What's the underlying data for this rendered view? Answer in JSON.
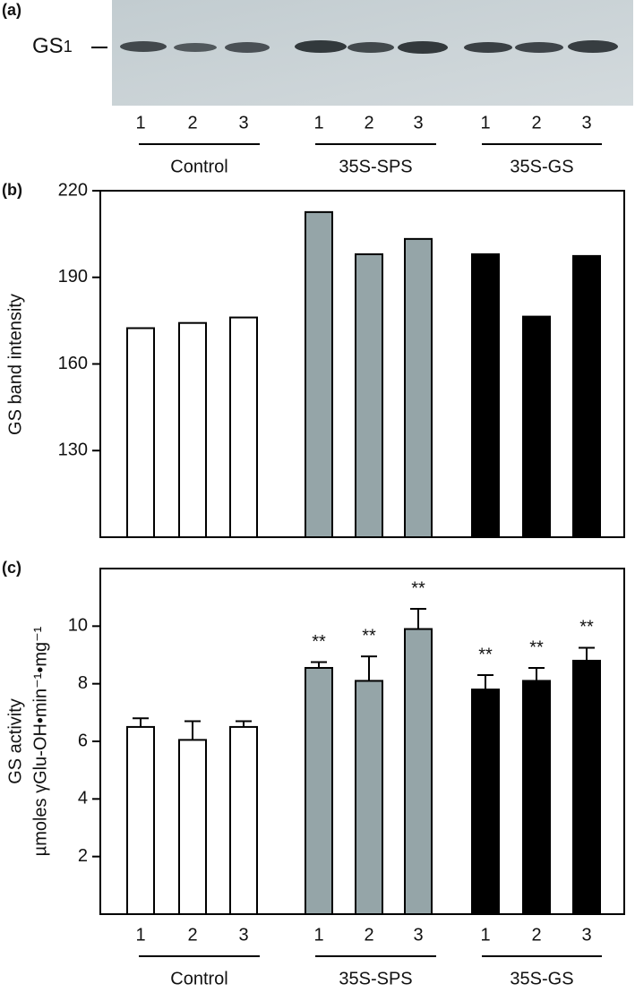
{
  "blot": {
    "panel_label": "(a)",
    "band_label": "GS",
    "band_subscript": "1",
    "lanes": [
      "1",
      "2",
      "3",
      "1",
      "2",
      "3",
      "1",
      "2",
      "3"
    ],
    "groups": [
      "Control",
      "35S-SPS",
      "35S-GS"
    ]
  },
  "chart_data": [
    {
      "type": "bar",
      "panel_label": "(b)",
      "ylabel": [
        "GS band intensity"
      ],
      "values": [
        172.4,
        174.2,
        176.1,
        212.6,
        198.0,
        203.3,
        198.0,
        176.4,
        197.4
      ],
      "colors": [
        "#ffffff",
        "#ffffff",
        "#ffffff",
        "#95a5a8",
        "#95a5a8",
        "#95a5a8",
        "#000000",
        "#000000",
        "#000000"
      ],
      "ylim": [
        100,
        220
      ],
      "yticks": [
        130,
        160,
        190,
        220
      ]
    },
    {
      "type": "bar",
      "panel_label": "(c)",
      "ylabel": [
        "GS activity",
        "µmoles γGlu-OH•min⁻¹•mg⁻¹"
      ],
      "categories": [
        "1",
        "2",
        "3",
        "1",
        "2",
        "3",
        "1",
        "2",
        "3"
      ],
      "groups": [
        "Control",
        "35S-SPS",
        "35S-GS"
      ],
      "values": [
        6.5,
        6.05,
        6.5,
        8.55,
        8.1,
        9.9,
        7.8,
        8.1,
        8.8
      ],
      "errors": [
        0.3,
        0.65,
        0.2,
        0.2,
        0.85,
        0.7,
        0.5,
        0.45,
        0.45
      ],
      "significance": [
        null,
        null,
        null,
        "**",
        "**",
        "**",
        "**",
        "**",
        "**"
      ],
      "colors": [
        "#ffffff",
        "#ffffff",
        "#ffffff",
        "#95a5a8",
        "#95a5a8",
        "#95a5a8",
        "#000000",
        "#000000",
        "#000000"
      ],
      "ylim": [
        0,
        12
      ],
      "yticks": [
        2,
        4,
        6,
        8,
        10
      ]
    }
  ]
}
